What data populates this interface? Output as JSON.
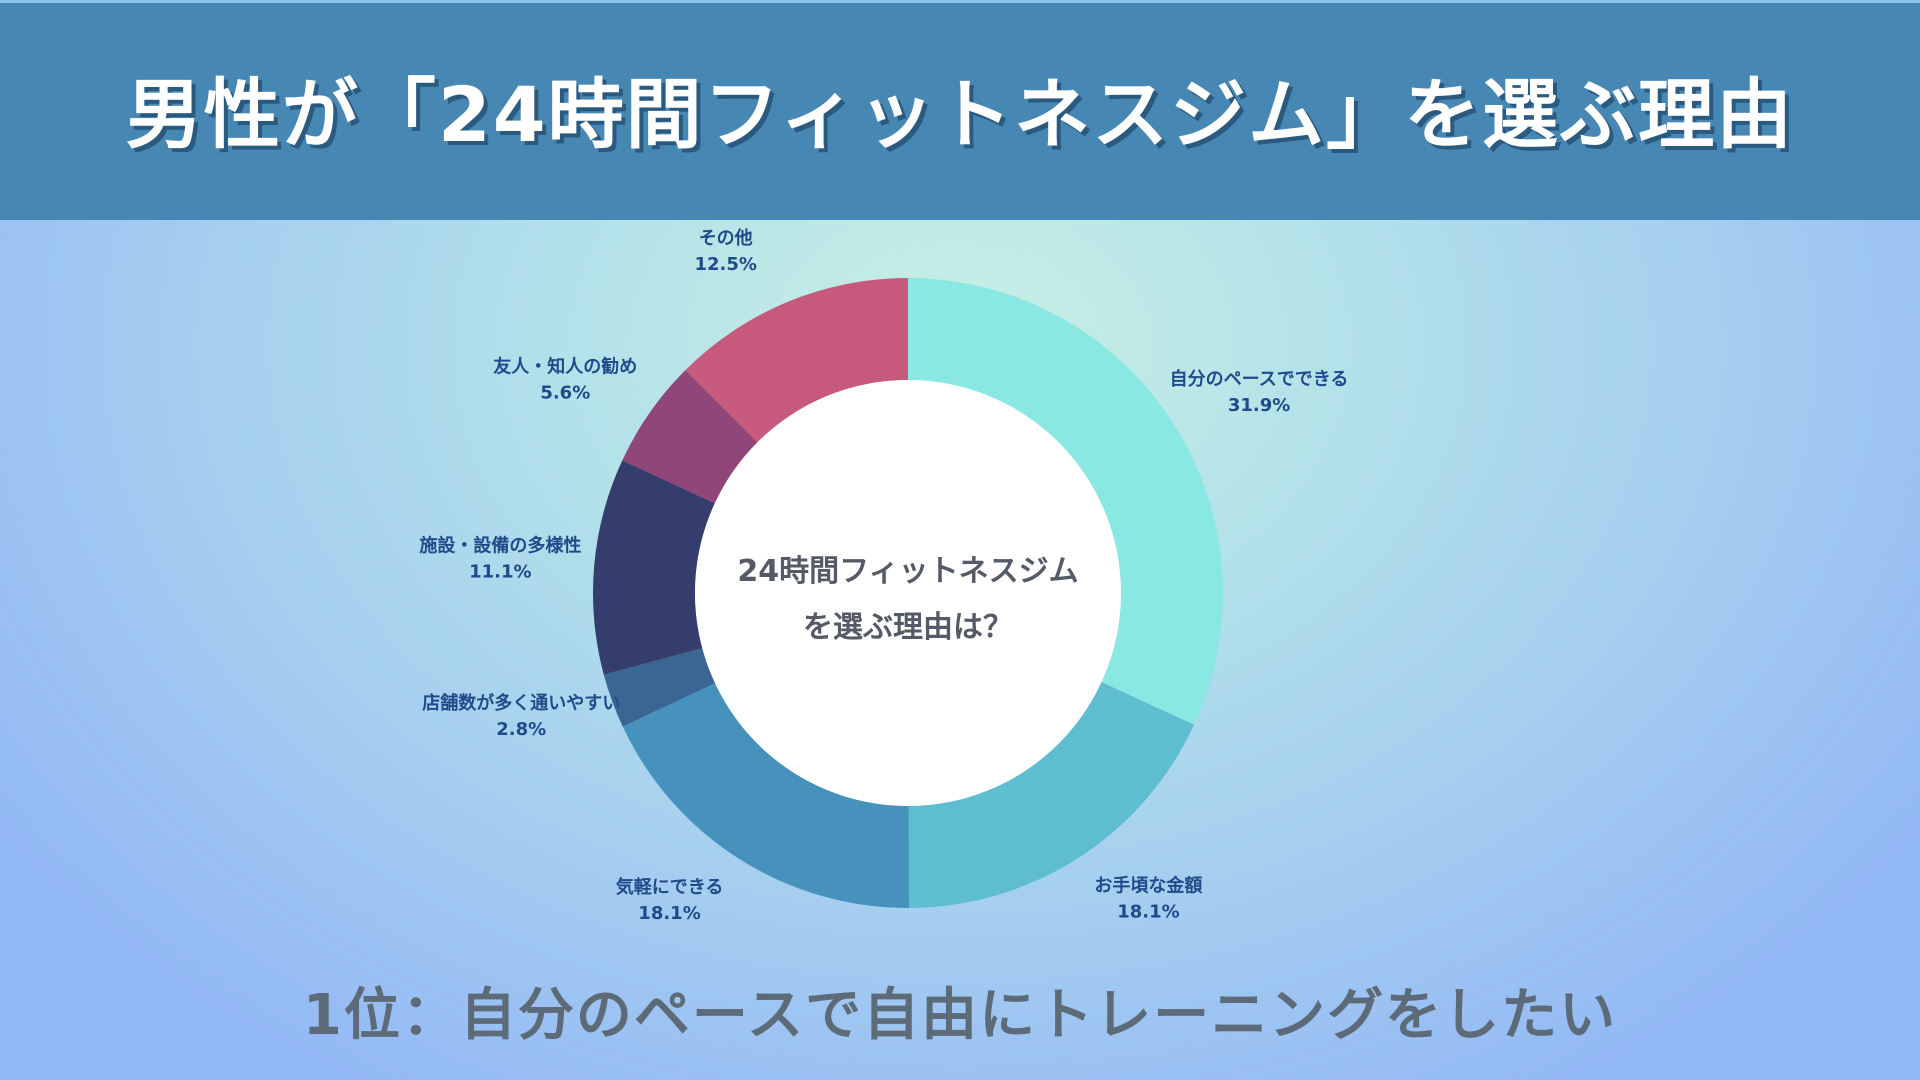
{
  "header": {
    "title": "男性が「24時間フィットネスジム」を選ぶ理由"
  },
  "chart_data": {
    "type": "pie",
    "center_text": [
      "24時間フィットネスジム",
      "を選ぶ理由は？"
    ],
    "slices": [
      {
        "label": "自分のペースでできる",
        "value": 31.9,
        "value_label": "31.9%",
        "color": "#8ae8e3"
      },
      {
        "label": "お手頃な金額",
        "value": 18.1,
        "value_label": "18.1%",
        "color": "#5fbdd2"
      },
      {
        "label": "気軽にできる",
        "value": 18.1,
        "value_label": "18.1%",
        "color": "#4791bd"
      },
      {
        "label": "店舗数が多く通いやすい",
        "value": 2.8,
        "value_label": "2.8%",
        "color": "#3a6693"
      },
      {
        "label": "施設・設備の多様性",
        "value": 11.1,
        "value_label": "11.1%",
        "color": "#343d6b"
      },
      {
        "label": "友人・知人の勧め",
        "value": 5.6,
        "value_label": "5.6%",
        "color": "#904678"
      },
      {
        "label": "その他",
        "value": 12.5,
        "value_label": "12.5%",
        "color": "#c7597d"
      }
    ],
    "label_color": "#1f4b8a"
  },
  "footer": {
    "text": "1位：自分のペースで自由にトレーニングをしたい"
  }
}
